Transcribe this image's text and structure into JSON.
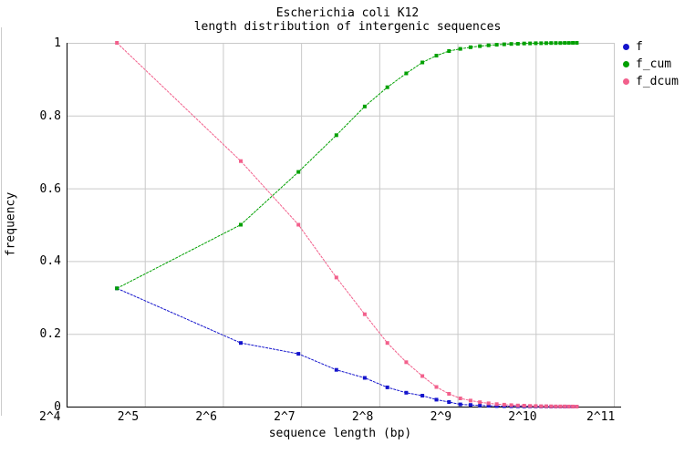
{
  "page": {
    "background": "#ffffff",
    "edge_line_color": "#cccccc"
  },
  "chart": {
    "title_line1": "Escherichia coli K12",
    "title_line2": "length distribution of intergenic sequences",
    "xlabel": "sequence length (bp)",
    "ylabel": "frequency"
  },
  "chart_data": {
    "type": "line",
    "title": "Escherichia coli K12 - length distribution of intergenic sequences",
    "xlabel": "sequence length (bp)",
    "ylabel": "frequency",
    "x_scale": "log2",
    "xlim_log2": [
      4,
      11
    ],
    "ylim": [
      0,
      1
    ],
    "grid": true,
    "grid_color": "#c9c9c9",
    "axis_color": "#000000",
    "legend_position": "outside-top-right",
    "x_tick_labels": [
      "2^4",
      "2^5",
      "2^6",
      "2^7",
      "2^8",
      "2^9",
      "2^10",
      "2^11"
    ],
    "x_tick_log2": [
      4,
      5,
      6,
      7,
      8,
      9,
      10,
      11
    ],
    "y_tick_labels": [
      "0",
      "0.2",
      "0.4",
      "0.6",
      "0.8",
      "1"
    ],
    "y_tick_values": [
      0,
      0.2,
      0.4,
      0.6,
      0.8,
      1
    ],
    "x": [
      25,
      75,
      125,
      175,
      225,
      275,
      325,
      375,
      425,
      475,
      525,
      575,
      625,
      675,
      725,
      775,
      825,
      875,
      925,
      975,
      1025,
      1075,
      1125,
      1175,
      1225,
      1275,
      1325,
      1375,
      1425,
      1475
    ],
    "series": [
      {
        "name": "f",
        "color": "#1414cc",
        "values": [
          0.325,
          0.175,
          0.145,
          0.101,
          0.079,
          0.053,
          0.038,
          0.03,
          0.019,
          0.0125,
          0.006,
          0.0045,
          0.003,
          0.0022,
          0.0016,
          0.0012,
          0.0009,
          0.0007,
          0.0006,
          0.0004,
          0.0003,
          0.0002,
          0.0002,
          0.0001,
          0.0001,
          0.0001,
          0.0001,
          0.0001,
          0.0001,
          0.0001
        ]
      },
      {
        "name": "f_cum",
        "color": "#00a000",
        "values": [
          0.325,
          0.5,
          0.645,
          0.746,
          0.825,
          0.878,
          0.916,
          0.946,
          0.965,
          0.9775,
          0.9835,
          0.988,
          0.991,
          0.9932,
          0.9948,
          0.996,
          0.9969,
          0.9976,
          0.9982,
          0.9986,
          0.9989,
          0.9991,
          0.9993,
          0.9994,
          0.9995,
          0.9996,
          0.9997,
          0.9998,
          0.9999,
          1.0
        ]
      },
      {
        "name": "f_dcum",
        "color": "#f2608c",
        "values": [
          1.0,
          0.675,
          0.5,
          0.355,
          0.254,
          0.175,
          0.122,
          0.084,
          0.054,
          0.035,
          0.0225,
          0.0165,
          0.012,
          0.009,
          0.0068,
          0.0052,
          0.004,
          0.0031,
          0.0024,
          0.0018,
          0.0014,
          0.0011,
          0.0009,
          0.0007,
          0.0006,
          0.0005,
          0.0004,
          0.0003,
          0.0002,
          0.0001
        ]
      }
    ]
  }
}
